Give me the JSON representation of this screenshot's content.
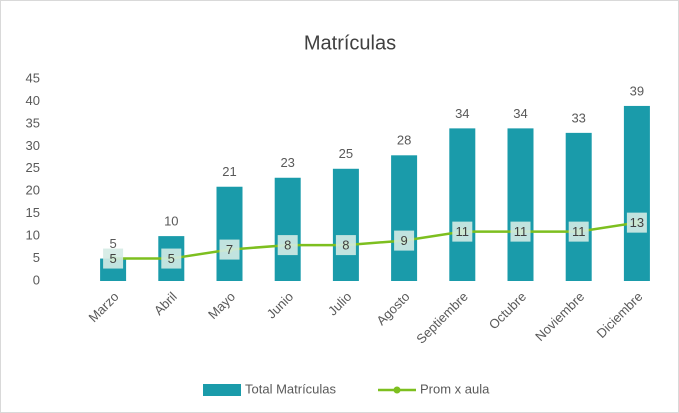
{
  "chart_data": {
    "type": "bar",
    "title": "Matrículas",
    "categories": [
      "Marzo",
      "Abril",
      "Mayo",
      "Junio",
      "Julio",
      "Agosto",
      "Septiembre",
      "Octubre",
      "Noviembre",
      "Diciembre"
    ],
    "series": [
      {
        "name": "Total Matrículas",
        "type": "bar",
        "color": "#1a9baa",
        "values": [
          5,
          10,
          21,
          23,
          25,
          28,
          34,
          34,
          33,
          39
        ]
      },
      {
        "name": "Prom x aula",
        "type": "line",
        "color": "#7dbf1f",
        "values": [
          5,
          5,
          7,
          8,
          8,
          9,
          11,
          11,
          11,
          13
        ]
      }
    ],
    "ylim": [
      0,
      45
    ],
    "yticks": [
      0,
      5,
      10,
      15,
      20,
      25,
      30,
      35,
      40,
      45
    ],
    "grid": false,
    "legend": "bottom"
  }
}
